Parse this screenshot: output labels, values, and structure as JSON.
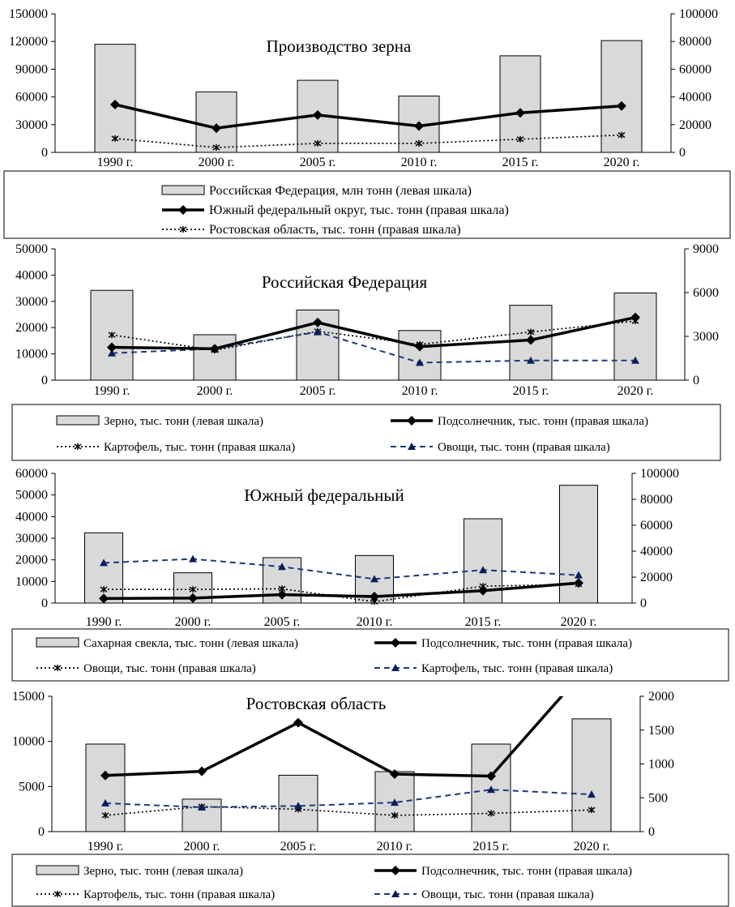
{
  "chart_data": [
    {
      "type": "bar",
      "title": "Производство зерна",
      "categories": [
        "1990 г.",
        "2000 г.",
        "2005 г.",
        "2010 г.",
        "2015 г.",
        "2020 г."
      ],
      "y_left": {
        "min": 0,
        "max": 150000,
        "ticks": [
          "0",
          "30000",
          "60000",
          "90000",
          "120000",
          "150000"
        ]
      },
      "y_right": {
        "min": 0,
        "max": 100000,
        "ticks": [
          "0",
          "20000",
          "40000",
          "60000",
          "80000",
          "100000"
        ]
      },
      "bars": {
        "name": "Российская Федерация, млн тонн (левая шкала)",
        "values": [
          117000,
          65500,
          78000,
          61000,
          104500,
          121000
        ],
        "color": "#d9d9d9"
      },
      "lines": [
        {
          "name": "Южный федеральный округ, тыс. тонн (правая шкала)",
          "style": "solid",
          "marker": "diamond",
          "values": [
            34500,
            17500,
            27000,
            19000,
            28500,
            33500
          ]
        },
        {
          "name": "Ростовская область, тыс. тонн (правая шкала)",
          "style": "dotted",
          "marker": "star",
          "values": [
            10000,
            3500,
            6500,
            6500,
            9500,
            12500
          ]
        }
      ],
      "legend_position": "bottom"
    },
    {
      "type": "bar",
      "title": "Российская Федерация",
      "categories": [
        "1990 г.",
        "2000 г.",
        "2005 г.",
        "2010 г.",
        "2015 г.",
        "2020 г."
      ],
      "y_left": {
        "min": 0,
        "max": 50000,
        "ticks": [
          "0",
          "10000",
          "20000",
          "30000",
          "40000",
          "50000"
        ]
      },
      "y_right": {
        "min": 0,
        "max": 9000,
        "ticks": [
          "0",
          "3000",
          "6000",
          "9000"
        ]
      },
      "bars": {
        "name": "Зерно, тыс. тонн (левая шкала)",
        "values": [
          34200,
          17300,
          26700,
          18900,
          28500,
          33200
        ],
        "color": "#d9d9d9"
      },
      "lines": [
        {
          "name": "Подсолнечник, тыс. тонн (правая шкала)",
          "style": "solid",
          "marker": "diamond",
          "values": [
            2250,
            2150,
            3950,
            2300,
            2750,
            4300
          ]
        },
        {
          "name": "Картофель, тыс. тонн (правая шкала)",
          "style": "dotted",
          "marker": "star",
          "values": [
            3100,
            2050,
            3350,
            2450,
            3300,
            4050
          ]
        },
        {
          "name": "Овощи, тыс. тонн (правая шкала)",
          "style": "dashed",
          "marker": "triangle",
          "values": [
            1850,
            2150,
            3300,
            1200,
            1350,
            1350
          ]
        }
      ],
      "legend_position": "bottom"
    },
    {
      "type": "bar",
      "title": "Южный федеральный",
      "categories": [
        "1990 г.",
        "2000 г.",
        "2005 г.",
        "2010 г.",
        "2015 г.",
        "2020 г."
      ],
      "y_left": {
        "min": 0,
        "max": 60000,
        "ticks": [
          "0",
          "10000",
          "20000",
          "30000",
          "40000",
          "50000",
          "60000"
        ]
      },
      "y_right": {
        "min": 0,
        "max": 100000,
        "ticks": [
          "0",
          "20000",
          "40000",
          "60000",
          "80000",
          "100000"
        ]
      },
      "bars": {
        "name": "Сахарная свекла, тыс. тонн (левая шкала)",
        "values": [
          32500,
          14000,
          21000,
          22000,
          39000,
          54500
        ],
        "color": "#d9d9d9"
      },
      "lines": [
        {
          "name": "Подсолнечник, тыс. тонн (правая шкала)",
          "style": "solid",
          "marker": "diamond",
          "values": [
            3500,
            3800,
            6500,
            5000,
            9500,
            15500
          ]
        },
        {
          "name": "Овощи, тыс. тонн (правая шкала)",
          "style": "dotted",
          "marker": "star",
          "values": [
            10500,
            10500,
            11000,
            1000,
            13000,
            14500
          ]
        },
        {
          "name": "Картофель, тыс. тонн (правая шкала)",
          "style": "dashed",
          "marker": "triangle",
          "values": [
            31000,
            34000,
            28000,
            18500,
            25500,
            21500
          ]
        }
      ],
      "legend_position": "bottom"
    },
    {
      "type": "bar",
      "title": "Ростовская область",
      "categories": [
        "1990 г.",
        "2000 г.",
        "2005 г.",
        "2010 г.",
        "2015 г.",
        "2020 г."
      ],
      "y_left": {
        "min": 0,
        "max": 15000,
        "ticks": [
          "0",
          "5000",
          "10000",
          "15000"
        ]
      },
      "y_right": {
        "min": 0,
        "max": 2000,
        "ticks": [
          "0",
          "500",
          "1000",
          "1500",
          "2000"
        ]
      },
      "bars": {
        "name": "Зерно, тыс. тонн (левая шкала)",
        "values": [
          9700,
          3600,
          6250,
          6650,
          9700,
          12500
        ],
        "color": "#d9d9d9"
      },
      "lines": [
        {
          "name": "Подсолнечник, тыс. тонн (правая шкала)",
          "style": "solid",
          "marker": "diamond",
          "values": [
            830,
            890,
            1610,
            850,
            820,
            2500
          ],
          "last_point_clipped": true
        },
        {
          "name": "Картофель, тыс. тонн (правая шкала)",
          "style": "dotted",
          "marker": "star",
          "values": [
            240,
            370,
            330,
            240,
            270,
            320
          ]
        },
        {
          "name": "Овощи, тыс. тонн (правая шкала)",
          "style": "dashed",
          "marker": "triangle",
          "values": [
            420,
            360,
            380,
            430,
            620,
            550
          ]
        }
      ],
      "legend_position": "bottom"
    }
  ]
}
